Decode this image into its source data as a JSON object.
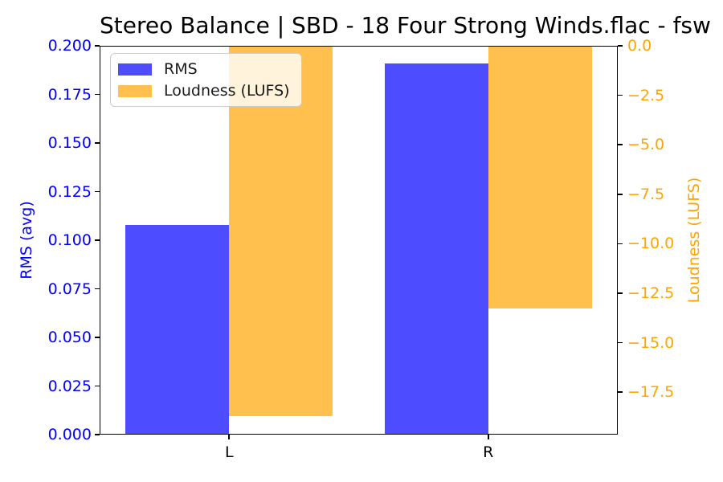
{
  "chart_data": {
    "type": "bar",
    "title": "Stereo Balance | SBD - 18 Four Strong Winds.flac - fsw",
    "categories": [
      "L",
      "R"
    ],
    "x_positions": [
      0,
      1
    ],
    "xlim": [
      -0.5,
      1.5
    ],
    "bar_width": 0.4,
    "grid": false,
    "series": [
      {
        "name": "RMS",
        "axis": "left",
        "color": "#4d4dff",
        "offset": -0.2,
        "values": [
          0.108,
          0.191
        ]
      },
      {
        "name": "Loudness (LUFS)",
        "axis": "right",
        "color": "#ffc04d",
        "offset": 0.2,
        "values": [
          -18.7,
          -13.25
        ]
      }
    ],
    "axes": {
      "left": {
        "label": "RMS (avg)",
        "color": "#0000ff",
        "min": 0.0,
        "max": 0.2,
        "ticks": [
          {
            "v": 0.0,
            "label": "0.000"
          },
          {
            "v": 0.025,
            "label": "0.025"
          },
          {
            "v": 0.05,
            "label": "0.050"
          },
          {
            "v": 0.075,
            "label": "0.075"
          },
          {
            "v": 0.1,
            "label": "0.100"
          },
          {
            "v": 0.125,
            "label": "0.125"
          },
          {
            "v": 0.15,
            "label": "0.150"
          },
          {
            "v": 0.175,
            "label": "0.175"
          },
          {
            "v": 0.2,
            "label": "0.200"
          }
        ]
      },
      "right": {
        "label": "Loudness (LUFS)",
        "color": "#ffa500",
        "min": -19.64,
        "max": 0.0,
        "ticks": [
          {
            "v": 0.0,
            "label": "0.0"
          },
          {
            "v": -2.5,
            "label": "−2.5"
          },
          {
            "v": -5.0,
            "label": "−5.0"
          },
          {
            "v": -7.5,
            "label": "−7.5"
          },
          {
            "v": -10.0,
            "label": "−10.0"
          },
          {
            "v": -12.5,
            "label": "−12.5"
          },
          {
            "v": -15.0,
            "label": "−15.0"
          },
          {
            "v": -17.5,
            "label": "−17.5"
          }
        ]
      }
    },
    "legend": {
      "position": "upper left",
      "entries": [
        "RMS",
        "Loudness (LUFS)"
      ]
    }
  }
}
